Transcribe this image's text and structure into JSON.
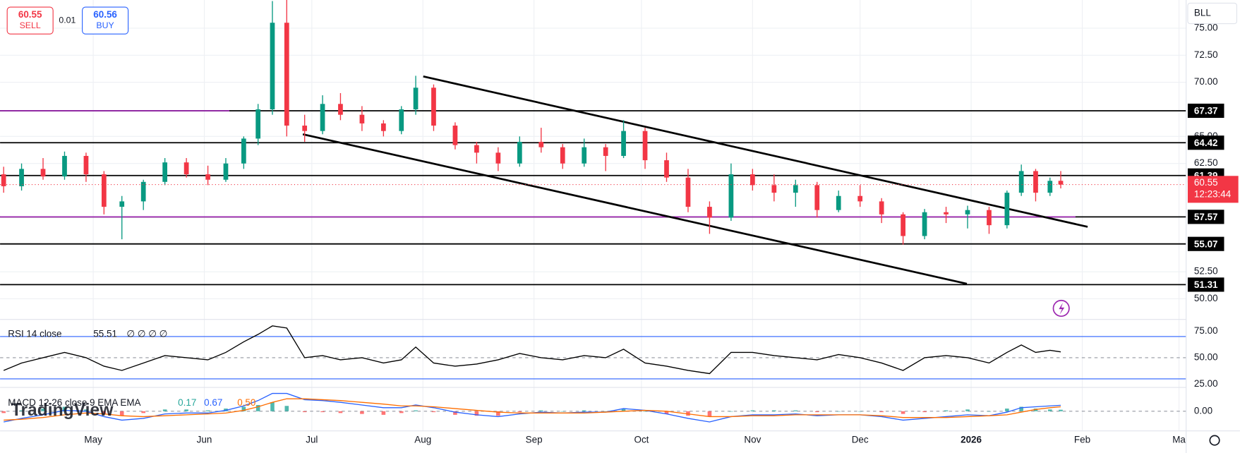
{
  "header": {
    "sell_price": "60.55",
    "sell_label": "SELL",
    "spread": "0.01",
    "buy_price": "60.56",
    "buy_label": "BUY",
    "symbol": "BLL",
    "logo": "TradingView"
  },
  "chart_data": [
    {
      "type": "candlestick",
      "up_color": "#089981",
      "down_color": "#f23645",
      "x": [
        5,
        10,
        16,
        22,
        28,
        33,
        38,
        44,
        50,
        56,
        62,
        67,
        72,
        76,
        80,
        84,
        89,
        94,
        99,
        105,
        111,
        116,
        120,
        125,
        131,
        137,
        143,
        149,
        155,
        161,
        167,
        173,
        178,
        184,
        190,
        196,
        202,
        208,
        214,
        220,
        226,
        232,
        238,
        244,
        250,
        256,
        262,
        268,
        274,
        280,
        285,
        289,
        293,
        297,
        300
      ],
      "open": [
        61.5,
        60.4,
        62.0,
        61.3,
        63.2,
        61.5,
        58.5,
        59.0,
        60.8,
        62.6,
        61.5,
        61.0,
        62.5,
        64.8,
        67.5,
        75.5,
        66.0,
        65.5,
        68.0,
        67.0,
        66.2,
        65.5,
        67.5,
        69.5,
        66.0,
        64.2,
        63.5,
        62.5,
        64.5,
        64.0,
        62.5,
        64.0,
        63.2,
        65.5,
        62.8,
        61.2,
        58.5,
        57.5,
        61.5,
        60.5,
        59.8,
        60.5,
        58.2,
        59.5,
        59.0,
        57.8,
        55.8,
        58.0,
        57.8,
        58.2,
        56.8,
        59.8,
        61.8,
        59.8,
        60.9
      ],
      "high": [
        62.2,
        62.5,
        63.0,
        63.6,
        63.5,
        61.8,
        59.5,
        61.0,
        63.0,
        63.0,
        62.3,
        63.0,
        65.0,
        68.0,
        77.5,
        77.6,
        67.0,
        68.8,
        69.0,
        67.8,
        66.5,
        67.8,
        70.6,
        69.8,
        66.3,
        64.5,
        64.0,
        65.0,
        65.8,
        64.3,
        64.8,
        64.3,
        66.5,
        65.8,
        63.5,
        62.0,
        59.0,
        62.5,
        62.0,
        61.5,
        61.0,
        60.8,
        60.0,
        60.5,
        59.3,
        58.0,
        58.3,
        58.5,
        58.6,
        58.5,
        60.0,
        62.4,
        62.0,
        61.2,
        61.8
      ],
      "low": [
        59.8,
        60.0,
        61.0,
        61.0,
        60.8,
        57.8,
        55.5,
        58.2,
        60.5,
        61.2,
        60.5,
        60.8,
        62.0,
        64.2,
        67.0,
        65.0,
        64.5,
        65.2,
        66.5,
        65.5,
        65.0,
        65.2,
        67.0,
        65.5,
        63.8,
        62.5,
        61.8,
        62.2,
        63.5,
        62.0,
        62.2,
        61.8,
        63.0,
        62.0,
        60.8,
        58.0,
        56.0,
        57.2,
        60.0,
        59.0,
        58.5,
        57.5,
        58.0,
        58.5,
        57.0,
        55.0,
        55.5,
        57.0,
        56.5,
        56.0,
        56.5,
        59.5,
        59.0,
        59.5,
        60.2
      ],
      "close": [
        60.4,
        62.0,
        61.3,
        63.2,
        61.5,
        58.5,
        59.0,
        60.8,
        62.6,
        61.5,
        61.0,
        62.5,
        64.8,
        67.5,
        75.5,
        66.0,
        65.5,
        68.0,
        67.0,
        66.2,
        65.5,
        67.5,
        69.5,
        66.0,
        64.2,
        63.5,
        62.5,
        64.5,
        64.0,
        62.5,
        64.0,
        63.2,
        65.5,
        62.8,
        61.2,
        58.5,
        57.5,
        61.5,
        60.5,
        59.8,
        60.5,
        58.2,
        59.5,
        59.0,
        57.8,
        55.8,
        58.0,
        57.8,
        58.2,
        56.8,
        59.8,
        61.8,
        59.8,
        60.9,
        60.55
      ],
      "xlim": [
        4,
        335
      ],
      "xticks": [
        {
          "value": 30,
          "label": "May"
        },
        {
          "value": 61,
          "label": "Jun"
        },
        {
          "value": 91,
          "label": "Jul"
        },
        {
          "value": 122,
          "label": "Aug"
        },
        {
          "value": 153,
          "label": "Sep"
        },
        {
          "value": 183,
          "label": "Oct"
        },
        {
          "value": 214,
          "label": "Nov"
        },
        {
          "value": 244,
          "label": "Dec"
        },
        {
          "value": 275,
          "label": "2026"
        },
        {
          "value": 306,
          "label": "Feb"
        },
        {
          "value": 333,
          "label": "Ma"
        }
      ],
      "ylim": [
        48.1,
        77.6
      ],
      "yticks": [
        {
          "value": 75,
          "label": "75.00"
        },
        {
          "value": 72.5,
          "label": "72.50"
        },
        {
          "value": 70,
          "label": "70.00"
        },
        {
          "value": 65,
          "label": "65.00"
        },
        {
          "value": 62.5,
          "label": "62.50"
        },
        {
          "value": 52.5,
          "label": "52.50"
        },
        {
          "value": 50,
          "label": "50.00"
        }
      ],
      "levels": [
        67.37,
        64.42,
        61.39,
        57.57,
        55.07,
        51.31
      ],
      "level_color": "#000000",
      "purple_levels": [
        67.37,
        57.57
      ],
      "purple_color": "#9c27b0",
      "trendlines": [
        {
          "x": [
            122.1,
            307.5
          ],
          "y": [
            70.54,
            56.65
          ]
        },
        {
          "x": [
            88.5,
            273.8
          ],
          "y": [
            65.2,
            51.39
          ]
        }
      ],
      "last_price": 60.55,
      "countdown": "12:23:44",
      "last_color": "#f23645"
    },
    {
      "type": "line",
      "name": "RSI 14 close",
      "extra": "∅ ∅ ∅ ∅",
      "color": "#000000",
      "band_color": "#2962ff",
      "values": [
        38,
        45,
        50,
        55,
        50,
        42,
        38,
        45,
        52,
        50,
        48,
        55,
        65,
        72,
        80,
        78,
        50,
        52,
        48,
        50,
        45,
        48,
        60,
        45,
        42,
        44,
        48,
        54,
        50,
        48,
        52,
        50,
        58,
        45,
        42,
        38,
        35,
        55,
        55,
        52,
        50,
        48,
        53,
        50,
        45,
        38,
        50,
        52,
        50,
        45,
        55,
        62,
        55,
        57,
        55.51
      ],
      "ylim": [
        22,
        85.4
      ],
      "yticks": [
        {
          "value": 75,
          "label": "75.00"
        },
        {
          "value": 50,
          "label": "50.00"
        },
        {
          "value": 25,
          "label": "25.00"
        }
      ],
      "bands": [
        70,
        30
      ]
    },
    {
      "type": "macd",
      "name": "MACD 12 26 close 9 EMA EMA",
      "legend_labels": [
        "0.17",
        "0.67",
        "0.50"
      ],
      "histogram": [
        -0.2,
        0.1,
        0.3,
        0.5,
        0.2,
        -0.3,
        -0.5,
        -0.2,
        0.2,
        0.2,
        0.1,
        0.3,
        0.5,
        0.7,
        1.0,
        0.6,
        -0.1,
        -0.1,
        -0.2,
        -0.3,
        -0.4,
        -0.2,
        0.1,
        -0.1,
        -0.4,
        -0.5,
        -0.5,
        -0.1,
        0.1,
        0.0,
        0.1,
        0.0,
        0.3,
        0.0,
        -0.3,
        -0.5,
        -0.6,
        0.0,
        0.1,
        0.1,
        0.1,
        -0.1,
        0.0,
        0.0,
        -0.1,
        -0.3,
        -0.1,
        0.1,
        0.2,
        0.0,
        0.3,
        0.5,
        0.3,
        0.2,
        0.17
      ],
      "macd": [
        -1.2,
        -0.8,
        -0.4,
        0.1,
        0.0,
        -0.6,
        -1.0,
        -0.8,
        -0.3,
        -0.2,
        -0.2,
        0.1,
        0.6,
        1.2,
        2.0,
        2.0,
        1.3,
        1.2,
        1.0,
        0.7,
        0.4,
        0.4,
        0.7,
        0.4,
        -0.1,
        -0.4,
        -0.6,
        -0.3,
        -0.1,
        -0.2,
        -0.1,
        -0.1,
        0.3,
        0.1,
        -0.3,
        -0.8,
        -1.2,
        -0.6,
        -0.4,
        -0.4,
        -0.3,
        -0.5,
        -0.4,
        -0.4,
        -0.6,
        -1.0,
        -0.8,
        -0.6,
        -0.4,
        -0.5,
        -0.1,
        0.4,
        0.5,
        0.6,
        0.67
      ],
      "signal": [
        -1.0,
        -0.9,
        -0.7,
        -0.4,
        -0.2,
        -0.3,
        -0.5,
        -0.6,
        -0.5,
        -0.4,
        -0.3,
        -0.2,
        0.1,
        0.5,
        1.0,
        1.4,
        1.4,
        1.3,
        1.2,
        1.0,
        0.8,
        0.6,
        0.6,
        0.5,
        0.3,
        0.1,
        -0.1,
        -0.2,
        -0.2,
        -0.2,
        -0.2,
        -0.1,
        0.0,
        0.1,
        0.0,
        -0.3,
        -0.6,
        -0.6,
        -0.5,
        -0.5,
        -0.4,
        -0.4,
        -0.4,
        -0.4,
        -0.5,
        -0.7,
        -0.7,
        -0.7,
        -0.6,
        -0.5,
        -0.4,
        -0.1,
        0.2,
        0.4,
        0.5
      ],
      "hist_up_color": "#26a69a",
      "hist_down_color": "#ff5252",
      "macd_color": "#2962ff",
      "signal_color": "#ff6d00",
      "ylim": [
        -2.2,
        2.5
      ],
      "yticks": [
        {
          "value": 0,
          "label": "0.00"
        }
      ]
    }
  ]
}
